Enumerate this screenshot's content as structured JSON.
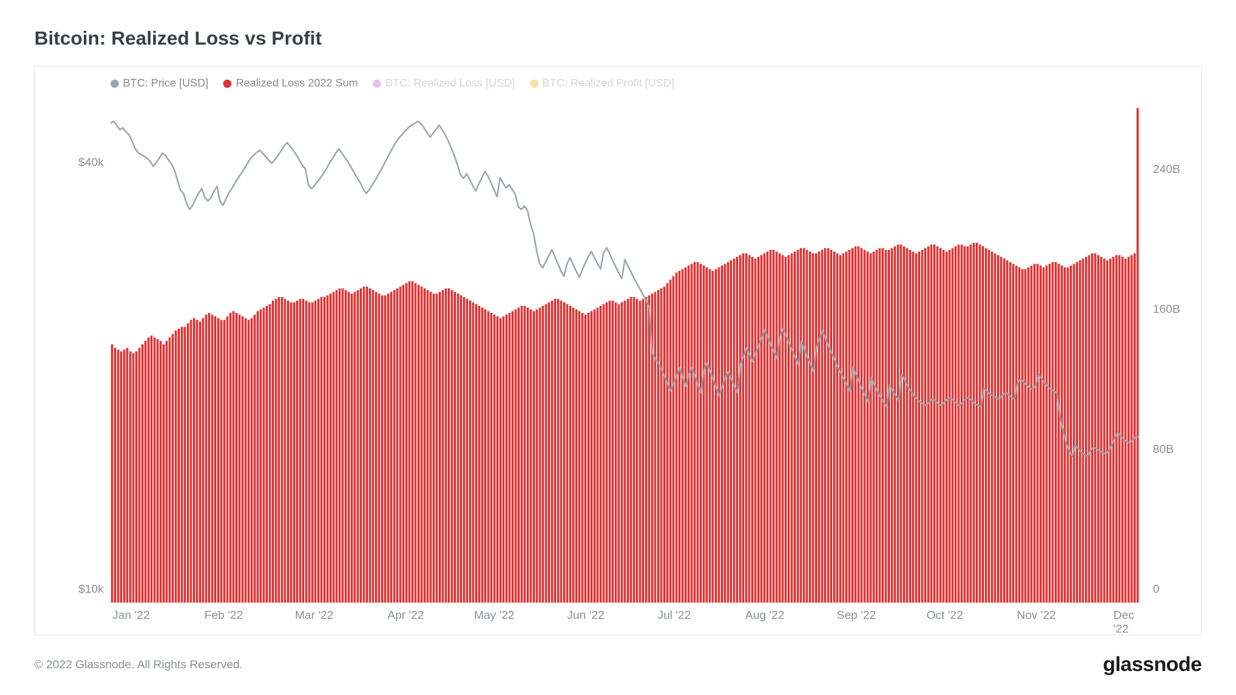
{
  "title": "Bitcoin: Realized Loss vs Profit",
  "copyright": "© 2022 Glassnode. All Rights Reserved.",
  "brand": "glassnode",
  "legend": [
    {
      "label": "BTC: Price [USD]",
      "color": "#9aa3ab",
      "faded": false
    },
    {
      "label": "Realized Loss 2022 Sum",
      "color": "#e03131",
      "faded": false
    },
    {
      "label": "BTC: Realized Loss [USD]",
      "color": "#b84de0",
      "faded": true
    },
    {
      "label": "BTC: Realized Profit [USD]",
      "color": "#f59f00",
      "faded": true
    }
  ],
  "chart": {
    "background_color": "#ffffff",
    "border_color": "#e6e6e6",
    "x_axis": {
      "labels": [
        "Jan '22",
        "Feb '22",
        "Mar '22",
        "Apr '22",
        "May '22",
        "Jun '22",
        "Jul '22",
        "Aug '22",
        "Sep '22",
        "Oct '22",
        "Nov '22",
        "Dec '22"
      ],
      "positions_pct": [
        2,
        11,
        19.8,
        28.7,
        37.3,
        46.2,
        54.8,
        63.6,
        72.5,
        81.1,
        90,
        98.5
      ]
    },
    "y_left": {
      "scale": "log",
      "min": 10000,
      "max": 52000,
      "ticks": [
        {
          "label": "$40k",
          "value": 40000
        },
        {
          "label": "$10k",
          "value": 10000
        }
      ],
      "label_color": "#8a8f94",
      "label_fontsize": 17
    },
    "y_right": {
      "scale": "linear",
      "min": 0,
      "max": 290,
      "ticks": [
        {
          "label": "240B",
          "value": 240
        },
        {
          "label": "160B",
          "value": 160
        },
        {
          "label": "80B",
          "value": 80
        },
        {
          "label": "0",
          "value": 0
        }
      ],
      "label_color": "#8a8f94",
      "label_fontsize": 17
    },
    "bars": {
      "color": "#e03131",
      "stroke": "#ffffff",
      "stroke_width": 1.2,
      "values": [
        148,
        146,
        145,
        144,
        145,
        146,
        144,
        143,
        144,
        146,
        148,
        150,
        152,
        153,
        152,
        151,
        150,
        148,
        150,
        152,
        154,
        156,
        157,
        158,
        158,
        160,
        162,
        163,
        162,
        161,
        163,
        165,
        166,
        165,
        164,
        163,
        162,
        162,
        164,
        166,
        167,
        166,
        165,
        164,
        163,
        162,
        163,
        165,
        167,
        168,
        169,
        170,
        171,
        173,
        174,
        175,
        175,
        174,
        173,
        172,
        172,
        173,
        174,
        174,
        173,
        172,
        172,
        173,
        174,
        175,
        175,
        176,
        177,
        178,
        179,
        180,
        180,
        179,
        178,
        177,
        178,
        179,
        180,
        181,
        181,
        180,
        179,
        178,
        177,
        176,
        176,
        177,
        178,
        179,
        180,
        181,
        182,
        183,
        184,
        184,
        183,
        182,
        181,
        180,
        179,
        178,
        177,
        177,
        178,
        179,
        180,
        180,
        179,
        178,
        177,
        176,
        175,
        174,
        173,
        172,
        171,
        170,
        169,
        168,
        167,
        166,
        165,
        164,
        163,
        164,
        165,
        166,
        167,
        168,
        169,
        170,
        170,
        169,
        168,
        167,
        168,
        169,
        170,
        171,
        172,
        173,
        174,
        174,
        173,
        172,
        171,
        170,
        169,
        168,
        167,
        166,
        165,
        166,
        167,
        168,
        169,
        170,
        171,
        172,
        173,
        173,
        172,
        171,
        172,
        173,
        174,
        175,
        175,
        174,
        173,
        174,
        175,
        176,
        177,
        178,
        179,
        180,
        181,
        183,
        185,
        187,
        189,
        190,
        191,
        192,
        193,
        194,
        195,
        195,
        194,
        193,
        192,
        191,
        190,
        191,
        192,
        193,
        194,
        195,
        196,
        197,
        198,
        199,
        200,
        200,
        199,
        198,
        197,
        198,
        199,
        200,
        201,
        202,
        202,
        201,
        200,
        199,
        198,
        199,
        200,
        201,
        202,
        203,
        203,
        202,
        201,
        200,
        200,
        201,
        202,
        203,
        203,
        202,
        201,
        200,
        199,
        200,
        201,
        202,
        203,
        204,
        204,
        203,
        202,
        201,
        200,
        201,
        202,
        203,
        203,
        202,
        202,
        203,
        204,
        205,
        205,
        204,
        203,
        202,
        201,
        200,
        201,
        202,
        203,
        204,
        205,
        205,
        204,
        203,
        202,
        201,
        202,
        203,
        204,
        205,
        205,
        204,
        204,
        205,
        206,
        206,
        205,
        204,
        203,
        202,
        201,
        200,
        199,
        198,
        197,
        196,
        195,
        194,
        193,
        192,
        191,
        191,
        192,
        193,
        194,
        194,
        193,
        192,
        193,
        194,
        195,
        195,
        194,
        193,
        192,
        192,
        193,
        194,
        195,
        196,
        197,
        198,
        199,
        200,
        200,
        199,
        198,
        197,
        196,
        197,
        198,
        199,
        199,
        198,
        197,
        198,
        199,
        200,
        283
      ]
    },
    "price_line": {
      "color": "#9aa3ab",
      "width": 2.2,
      "values": [
        47500,
        47800,
        47200,
        46500,
        46800,
        46200,
        45800,
        44900,
        43800,
        43200,
        42900,
        42700,
        42400,
        42000,
        41300,
        41800,
        42400,
        43100,
        42800,
        42200,
        41600,
        40800,
        39500,
        38200,
        37800,
        36600,
        35900,
        36400,
        37200,
        37900,
        38400,
        37300,
        36900,
        37300,
        38100,
        38700,
        36800,
        36400,
        37200,
        38000,
        38500,
        39200,
        39800,
        40400,
        41000,
        41700,
        42400,
        42800,
        43200,
        43500,
        43100,
        42600,
        42100,
        41700,
        42200,
        42800,
        43400,
        44100,
        44600,
        44100,
        43500,
        42900,
        42200,
        41400,
        41000,
        38900,
        38400,
        38800,
        39300,
        39800,
        40400,
        41000,
        41800,
        42400,
        43100,
        43700,
        43100,
        42500,
        41900,
        41200,
        40500,
        39800,
        39200,
        38400,
        37800,
        38300,
        38900,
        39500,
        40200,
        40900,
        41700,
        42500,
        43300,
        44100,
        44800,
        45400,
        45900,
        46400,
        46900,
        47200,
        47500,
        47800,
        47400,
        46800,
        46100,
        45400,
        46000,
        46600,
        47200,
        46500,
        45700,
        44800,
        43800,
        42700,
        41500,
        40200,
        39700,
        40300,
        39600,
        38800,
        38100,
        39000,
        39800,
        40600,
        40000,
        39200,
        38300,
        37400,
        39800,
        39100,
        38500,
        38900,
        38300,
        37700,
        36200,
        35900,
        36300,
        35800,
        34200,
        33200,
        31400,
        30100,
        29700,
        30300,
        30900,
        31500,
        30800,
        30100,
        29400,
        28900,
        30100,
        30700,
        30000,
        29400,
        28800,
        29500,
        30200,
        30800,
        31300,
        30700,
        30100,
        29600,
        31200,
        31700,
        31100,
        30400,
        29800,
        29200,
        28700,
        30500,
        29900,
        29300,
        28700,
        28200,
        27700,
        27200,
        26700,
        26200,
        22500,
        22100,
        21800,
        21400,
        20900,
        20400,
        19900,
        20400,
        20900,
        21500,
        20800,
        20200,
        21000,
        21500,
        20900,
        20300,
        19800,
        21300,
        21800,
        21200,
        20700,
        20100,
        19600,
        20200,
        20800,
        21200,
        20700,
        20200,
        19800,
        21700,
        22300,
        22900,
        22400,
        21900,
        22500,
        23100,
        23700,
        24300,
        23700,
        23100,
        22600,
        22100,
        23800,
        24400,
        23800,
        23200,
        22700,
        22200,
        21700,
        23400,
        22800,
        22200,
        21700,
        21200,
        23000,
        23600,
        24200,
        23600,
        23000,
        22500,
        22000,
        21500,
        21100,
        20700,
        20300,
        19900,
        21500,
        21000,
        20500,
        20000,
        19600,
        19200,
        20800,
        20300,
        19900,
        19500,
        19200,
        18900,
        20300,
        19900,
        19600,
        19300,
        21000,
        20600,
        20200,
        19900,
        19600,
        19400,
        19200,
        19100,
        19000,
        19200,
        19400,
        19300,
        19100,
        19000,
        19200,
        19400,
        19500,
        19300,
        19100,
        19000,
        19200,
        19400,
        19500,
        19300,
        19100,
        19000,
        18900,
        20100,
        19900,
        19700,
        19600,
        19500,
        19400,
        19600,
        19800,
        19700,
        19500,
        19400,
        20400,
        20700,
        20500,
        20300,
        20100,
        20000,
        20300,
        21000,
        20700,
        20400,
        20200,
        20000,
        19900,
        19800,
        18300,
        17500,
        16800,
        16400,
        16100,
        16700,
        16500,
        16300,
        16200,
        16100,
        16400,
        16600,
        16500,
        16400,
        16300,
        16200,
        16400,
        16700,
        17100,
        17400,
        17200,
        17000,
        16900,
        16800,
        17000,
        17200,
        17100
      ]
    }
  }
}
